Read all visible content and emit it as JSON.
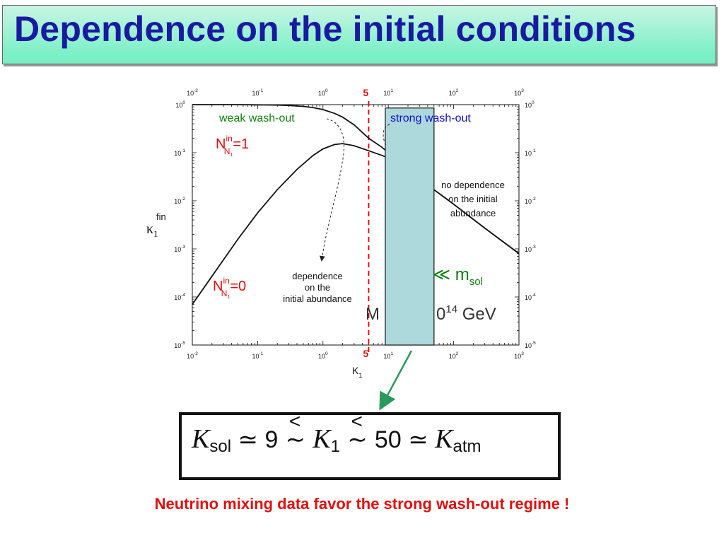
{
  "title": "Dependence on the initial conditions",
  "colors": {
    "title_text": "#1a1aa0",
    "title_bg": "#7ef0c8",
    "red": "#e01010",
    "green": "#108010",
    "blue": "#1010c0",
    "box_fill": "#add8dc"
  },
  "chart_data": {
    "type": "line",
    "x_scale": "log",
    "y_scale": "log",
    "xlabel": "K",
    "xlabel_sub": "1",
    "ylabel": "κ",
    "ylabel_sub": "1",
    "ylabel_sup": "fin",
    "xlim": [
      0.01,
      1000
    ],
    "ylim": [
      1e-05,
      1
    ],
    "x_ticks": [
      {
        "value": 0.01,
        "base": "10",
        "exp": "-2"
      },
      {
        "value": 0.1,
        "base": "10",
        "exp": "-1"
      },
      {
        "value": 1,
        "base": "10",
        "exp": "0"
      },
      {
        "value": 10,
        "base": "10",
        "exp": "1"
      },
      {
        "value": 100,
        "base": "10",
        "exp": "2"
      },
      {
        "value": 1000,
        "base": "10",
        "exp": "3"
      }
    ],
    "y_ticks": [
      {
        "value": 1,
        "base": "10",
        "exp": "0"
      },
      {
        "value": 0.1,
        "base": "10",
        "exp": "-1"
      },
      {
        "value": 0.01,
        "base": "10",
        "exp": "-2"
      },
      {
        "value": 0.001,
        "base": "10",
        "exp": "-3"
      },
      {
        "value": 0.0001,
        "base": "10",
        "exp": "-4"
      },
      {
        "value": 1e-05,
        "base": "10",
        "exp": "-5"
      }
    ],
    "series": [
      {
        "label_main": "N",
        "label_sub": "N",
        "label_subsub": "1",
        "label_sup": "in",
        "label_value": "=1",
        "x": [
          0.01,
          0.05,
          0.1,
          0.2,
          0.3,
          0.5,
          0.7,
          1,
          1.5,
          2,
          3,
          5,
          8,
          10,
          20,
          50,
          100,
          300,
          1000
        ],
        "y": [
          1,
          1,
          0.99,
          0.98,
          0.96,
          0.92,
          0.87,
          0.79,
          0.66,
          0.55,
          0.38,
          0.2,
          0.13,
          0.1,
          0.046,
          0.017,
          0.0085,
          0.0027,
          0.0008
        ]
      },
      {
        "label_main": "N",
        "label_sub": "N",
        "label_subsub": "1",
        "label_sup": "in",
        "label_value": "=0",
        "x": [
          0.01,
          0.02,
          0.05,
          0.1,
          0.2,
          0.4,
          0.7,
          1,
          1.5,
          2,
          3,
          5,
          8,
          10,
          20,
          50,
          100,
          300,
          1000
        ],
        "y": [
          7e-05,
          0.00027,
          0.0016,
          0.0056,
          0.017,
          0.045,
          0.087,
          0.12,
          0.148,
          0.155,
          0.14,
          0.11,
          0.088,
          0.078,
          0.044,
          0.017,
          0.0085,
          0.0027,
          0.0008
        ]
      }
    ],
    "marker_line": {
      "x": 5,
      "label": "5"
    },
    "shaded_band": {
      "x_from": 9,
      "x_to": 50,
      "y_top": 0.85,
      "y_bottom": 1e-05
    },
    "annotations": {
      "weak": "weak wash-out",
      "strong": "strong wash-out",
      "dependence": [
        "dependence",
        "on the",
        "initial abundance"
      ],
      "no_dependence": [
        "no dependence",
        "on the initial",
        "abundance"
      ],
      "mass_sym": "≪ m",
      "mass_sub": "sol",
      "mass_text": "M",
      "mass_exp_pre": "0",
      "mass_exp": "14",
      "mass_unit": " GeV"
    }
  },
  "formula": {
    "k_sol": "K",
    "k_sol_sub": "sol",
    "simeq": "≃",
    "nine": "9",
    "lt": "<",
    "sim": "∼",
    "k1": "K",
    "k1_sub": "1",
    "fifty": "50",
    "k_atm": "K",
    "k_atm_sub": "atm"
  },
  "footer": "Neutrino mixing data favor the  strong wash-out regime !"
}
